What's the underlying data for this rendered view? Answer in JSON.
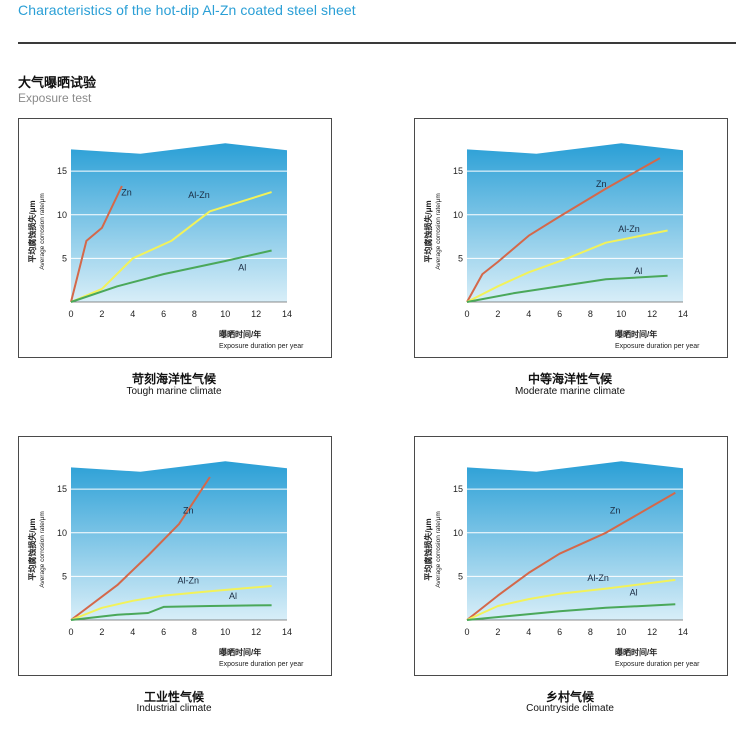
{
  "header": {
    "title": "Characteristics of the hot-dip Al-Zn coated steel sheet",
    "section_zh": "大气曝晒试验",
    "section_en": "Exposure test"
  },
  "colors": {
    "title_blue": "#2a9fd6",
    "zn_line": "#d4684a",
    "alzn_line": "#f2f25a",
    "al_line": "#4aa85a"
  },
  "chart_data": [
    {
      "type": "line",
      "caption_zh": "苛刻海洋性气候",
      "caption_en": "Tough marine climate",
      "ylabel_zh": "平均腐蚀损失/μm",
      "ylabel_en": "Average corrosion rate/μm",
      "xlabel_zh": "曝晒时间/年",
      "xlabel_en": "Exposure duration per year",
      "xlim": [
        0,
        14
      ],
      "ylim": [
        0,
        18
      ],
      "xticks": [
        0,
        2,
        4,
        6,
        8,
        10,
        12,
        14
      ],
      "yticks": [
        5,
        10,
        15
      ],
      "grid": true,
      "band_top": [
        [
          0,
          17.5
        ],
        [
          4.5,
          17.0
        ],
        [
          10,
          18.2
        ],
        [
          14,
          17.4
        ]
      ],
      "series": [
        {
          "name": "Zn",
          "color": "#d4684a",
          "points": [
            [
              0,
              0
            ],
            [
              1,
              7
            ],
            [
              2,
              8.5
            ],
            [
              3.3,
              13.3
            ]
          ],
          "label_at": [
            3.6,
            12.2
          ]
        },
        {
          "name": "Al-Zn",
          "color": "#f2f25a",
          "points": [
            [
              0,
              0
            ],
            [
              2,
              1.5
            ],
            [
              4,
              5
            ],
            [
              6.5,
              7
            ],
            [
              9,
              10.4
            ],
            [
              13,
              12.6
            ]
          ],
          "label_at": [
            8.3,
            11.9
          ]
        },
        {
          "name": "Al",
          "color": "#4aa85a",
          "points": [
            [
              0,
              0
            ],
            [
              3,
              1.8
            ],
            [
              6,
              3.2
            ],
            [
              10,
              4.7
            ],
            [
              13,
              5.9
            ]
          ],
          "label_at": [
            11.1,
            3.6
          ]
        }
      ]
    },
    {
      "type": "line",
      "caption_zh": "中等海洋性气候",
      "caption_en": "Moderate marine climate",
      "ylabel_zh": "平均腐蚀损失/μm",
      "ylabel_en": "Average corrosion rate/μm",
      "xlabel_zh": "曝晒时间/年",
      "xlabel_en": "Exposure duration per year",
      "xlim": [
        0,
        14
      ],
      "ylim": [
        0,
        18
      ],
      "xticks": [
        0,
        2,
        4,
        6,
        8,
        10,
        12,
        14
      ],
      "yticks": [
        5,
        10,
        15
      ],
      "grid": true,
      "band_top": [
        [
          0,
          17.5
        ],
        [
          4.5,
          17.0
        ],
        [
          10,
          18.2
        ],
        [
          14,
          17.4
        ]
      ],
      "series": [
        {
          "name": "Zn",
          "color": "#d4684a",
          "points": [
            [
              0,
              0
            ],
            [
              1,
              3.2
            ],
            [
              2,
              4.6
            ],
            [
              4,
              7.6
            ],
            [
              6,
              9.8
            ],
            [
              9,
              13
            ],
            [
              12.5,
              16.5
            ]
          ],
          "label_at": [
            8.7,
            13.2
          ]
        },
        {
          "name": "Al-Zn",
          "color": "#f2f25a",
          "points": [
            [
              0,
              0
            ],
            [
              2,
              1.8
            ],
            [
              4,
              3.4
            ],
            [
              6.5,
              5
            ],
            [
              9,
              6.8
            ],
            [
              13,
              8.2
            ]
          ],
          "label_at": [
            10.5,
            8.0
          ]
        },
        {
          "name": "Al",
          "color": "#4aa85a",
          "points": [
            [
              0,
              0
            ],
            [
              3,
              1
            ],
            [
              6,
              1.8
            ],
            [
              9,
              2.6
            ],
            [
              13,
              3
            ]
          ],
          "label_at": [
            11.1,
            3.2
          ]
        }
      ]
    },
    {
      "type": "line",
      "caption_zh": "工业性气候",
      "caption_en": "Industrial climate",
      "ylabel_zh": "平均腐蚀损失/μm",
      "ylabel_en": "Average corrosion rate/μm",
      "xlabel_zh": "曝晒时间/年",
      "xlabel_en": "Exposure duration per year",
      "xlim": [
        0,
        14
      ],
      "ylim": [
        0,
        18
      ],
      "xticks": [
        0,
        2,
        4,
        6,
        8,
        10,
        12,
        14
      ],
      "yticks": [
        5,
        10,
        15
      ],
      "grid": true,
      "band_top": [
        [
          0,
          17.5
        ],
        [
          4.5,
          17.0
        ],
        [
          10,
          18.2
        ],
        [
          14,
          17.4
        ]
      ],
      "series": [
        {
          "name": "Zn",
          "color": "#d4684a",
          "points": [
            [
              0,
              0
            ],
            [
              3,
              4
            ],
            [
              5,
              7.4
            ],
            [
              7,
              11
            ],
            [
              9,
              16.4
            ]
          ],
          "label_at": [
            7.6,
            12.2
          ]
        },
        {
          "name": "Al-Zn",
          "color": "#f2f25a",
          "points": [
            [
              0,
              0
            ],
            [
              2,
              1.4
            ],
            [
              4,
              2.2
            ],
            [
              6,
              2.8
            ],
            [
              9,
              3.3
            ],
            [
              13,
              3.9
            ]
          ],
          "label_at": [
            7.6,
            4.2
          ]
        },
        {
          "name": "Al",
          "color": "#4aa85a",
          "points": [
            [
              0,
              0
            ],
            [
              3,
              0.6
            ],
            [
              5,
              0.8
            ],
            [
              6,
              1.5
            ],
            [
              9,
              1.6
            ],
            [
              13,
              1.7
            ]
          ],
          "label_at": [
            10.5,
            2.4
          ]
        }
      ]
    },
    {
      "type": "line",
      "caption_zh": "乡村气候",
      "caption_en": "Countryside climate",
      "ylabel_zh": "平均腐蚀损失/μm",
      "ylabel_en": "Average corrosion rate/μm",
      "xlabel_zh": "曝晒时间/年",
      "xlabel_en": "Exposure duration per year",
      "xlim": [
        0,
        14
      ],
      "ylim": [
        0,
        18
      ],
      "xticks": [
        0,
        2,
        4,
        6,
        8,
        10,
        12,
        14
      ],
      "yticks": [
        5,
        10,
        15
      ],
      "grid": true,
      "band_top": [
        [
          0,
          17.5
        ],
        [
          4.5,
          17.0
        ],
        [
          10,
          18.2
        ],
        [
          14,
          17.4
        ]
      ],
      "series": [
        {
          "name": "Zn",
          "color": "#d4684a",
          "points": [
            [
              0,
              0
            ],
            [
              2,
              2.8
            ],
            [
              4,
              5.4
            ],
            [
              6,
              7.6
            ],
            [
              9,
              10
            ],
            [
              13.5,
              14.6
            ]
          ],
          "label_at": [
            9.6,
            12.2
          ]
        },
        {
          "name": "Al-Zn",
          "color": "#f2f25a",
          "points": [
            [
              0,
              0
            ],
            [
              2,
              1.6
            ],
            [
              4,
              2.4
            ],
            [
              6,
              3
            ],
            [
              9,
              3.6
            ],
            [
              13.5,
              4.6
            ]
          ],
          "label_at": [
            8.5,
            4.5
          ]
        },
        {
          "name": "Al",
          "color": "#4aa85a",
          "points": [
            [
              0,
              0
            ],
            [
              3,
              0.5
            ],
            [
              6,
              1
            ],
            [
              9,
              1.4
            ],
            [
              13.5,
              1.8
            ]
          ],
          "label_at": [
            10.8,
            2.8
          ]
        }
      ]
    }
  ]
}
